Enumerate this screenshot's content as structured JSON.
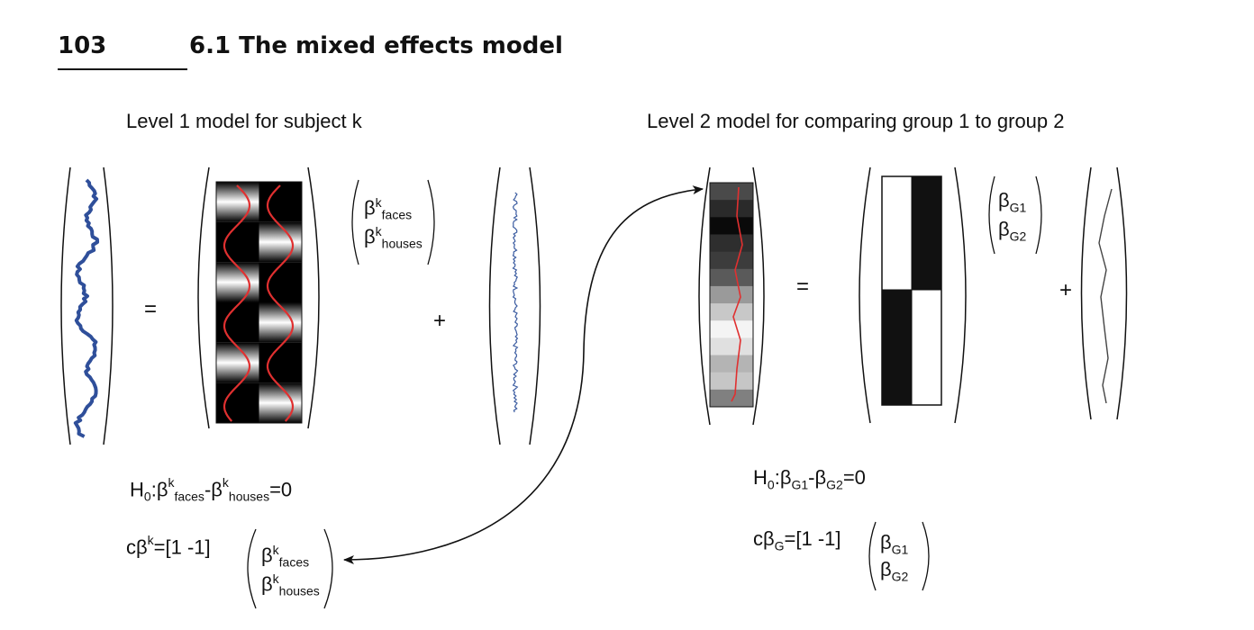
{
  "page": {
    "number": "103",
    "section_title": "6.1 The mixed effects model"
  },
  "level1": {
    "title": "Level 1 model for subject k",
    "equals": "=",
    "plus": "+",
    "beta_symbol": "β",
    "superscript": "k",
    "sub_faces": "faces",
    "sub_houses": "houses",
    "hypothesis": {
      "h": "H",
      "zero_sub": "0",
      "rhs": "=0"
    },
    "contrast": {
      "c": "c",
      "rhs": "=[1 -1]"
    }
  },
  "level2": {
    "title": "Level 2 model for comparing group 1 to group 2",
    "equals": "=",
    "plus": "+",
    "beta_symbol": "β",
    "sub_g1": "G1",
    "sub_g2": "G2",
    "sub_g": "G",
    "hypothesis": {
      "h": "H",
      "zero_sub": "0",
      "rhs": "=0"
    },
    "contrast": {
      "c": "c",
      "rhs": "=[1 -1]"
    }
  },
  "colors": {
    "signal": "#2f4f9a",
    "model": "#e03030",
    "ink": "#111111"
  }
}
